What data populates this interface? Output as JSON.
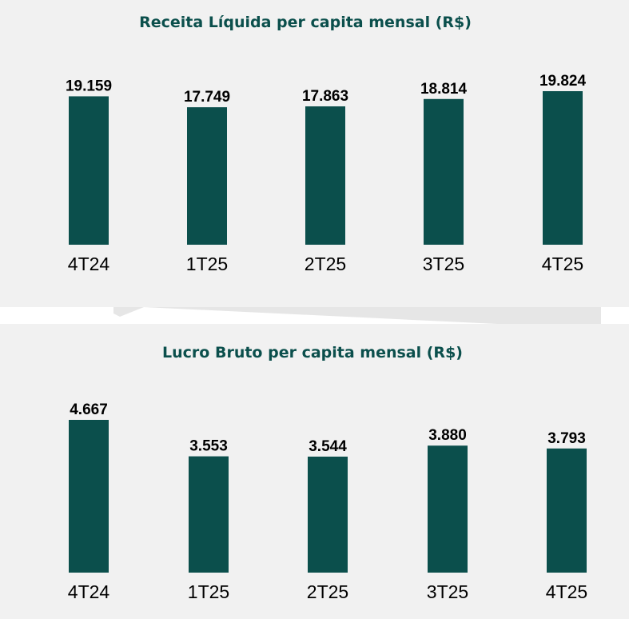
{
  "chart_data": [
    {
      "type": "bar",
      "title": "Receita Líquida per capita mensal (R$)",
      "categories": [
        "4T24",
        "1T25",
        "2T25",
        "3T25",
        "4T25"
      ],
      "values": [
        19159,
        17749,
        17863,
        18814,
        19824
      ],
      "value_labels": [
        "19.159",
        "17.749",
        "17.863",
        "18.814",
        "19.824"
      ],
      "ylim": [
        0,
        19824
      ],
      "grid": false,
      "legend": "none",
      "bar_color": "#0b4f4c"
    },
    {
      "type": "bar",
      "title": "Lucro Bruto per capita mensal (R$)",
      "categories": [
        "4T24",
        "1T25",
        "2T25",
        "3T25",
        "4T25"
      ],
      "values": [
        4667,
        3553,
        3544,
        3880,
        3793
      ],
      "value_labels": [
        "4.667",
        "3.553",
        "3.544",
        "3.880",
        "3.793"
      ],
      "ylim": [
        0,
        4667
      ],
      "grid": false,
      "legend": "none",
      "bar_color": "#0b4f4c"
    }
  ],
  "colors": {
    "panel_background": "#f1f1f1",
    "title_color": "#0b4f4c"
  }
}
